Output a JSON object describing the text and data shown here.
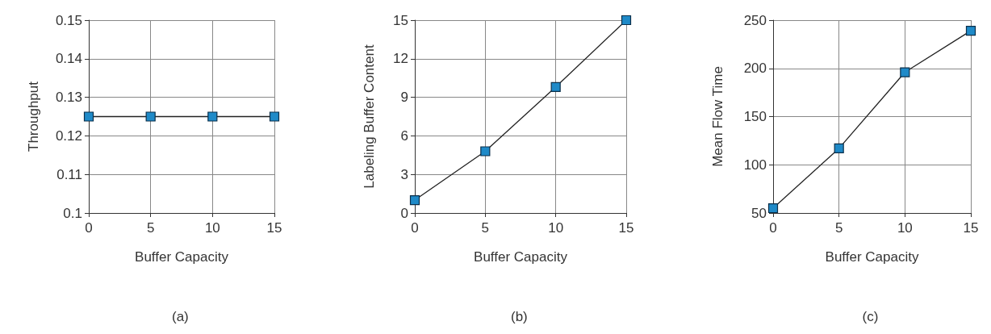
{
  "chart_data": [
    {
      "type": "line",
      "xlabel": "Buffer Capacity",
      "ylabel": "Throughput",
      "annotations": [
        "(a)"
      ],
      "x": [
        0,
        5,
        10,
        15
      ],
      "series": [
        {
          "color": "#1f8ac8",
          "values": [
            0.125,
            0.125,
            0.125,
            0.125
          ]
        }
      ],
      "xlim": [
        0,
        15
      ],
      "xticks": [
        0,
        5,
        10,
        15
      ],
      "ylim": [
        0.1,
        0.15
      ],
      "yticks": [
        {
          "value": 0.1,
          "label": "0.1"
        },
        0.11,
        0.12,
        0.13,
        0.14,
        0.15
      ],
      "grid": true,
      "marker": "square",
      "line_style": "solid"
    },
    {
      "type": "line",
      "xlabel": "Buffer Capacity",
      "ylabel": "Labeling Buffer Content",
      "annotations": [
        "(b)"
      ],
      "x": [
        0,
        5,
        10,
        15
      ],
      "series": [
        {
          "color": "#1f8ac8",
          "values": [
            1,
            4.8,
            9.8,
            15
          ]
        }
      ],
      "xlim": [
        0,
        15
      ],
      "xticks": [
        0,
        5,
        10,
        15
      ],
      "ylim": [
        0,
        15
      ],
      "yticks": [
        0,
        3,
        6,
        9,
        12,
        15
      ],
      "grid": true,
      "marker": "square",
      "line_style": "solid"
    },
    {
      "type": "line",
      "xlabel": "Buffer Capacity",
      "ylabel": "Mean Flow Time",
      "annotations": [
        "(c)"
      ],
      "x": [
        0,
        5,
        10,
        15
      ],
      "series": [
        {
          "color": "#1f8ac8",
          "values": [
            55,
            117,
            196,
            239
          ]
        }
      ],
      "xlim": [
        0,
        15
      ],
      "xticks": [
        0,
        5,
        10,
        15
      ],
      "ylim": [
        50,
        250
      ],
      "yticks": [
        50,
        100,
        150,
        200,
        250
      ],
      "grid": true,
      "marker": "square",
      "line_style": "solid"
    }
  ]
}
